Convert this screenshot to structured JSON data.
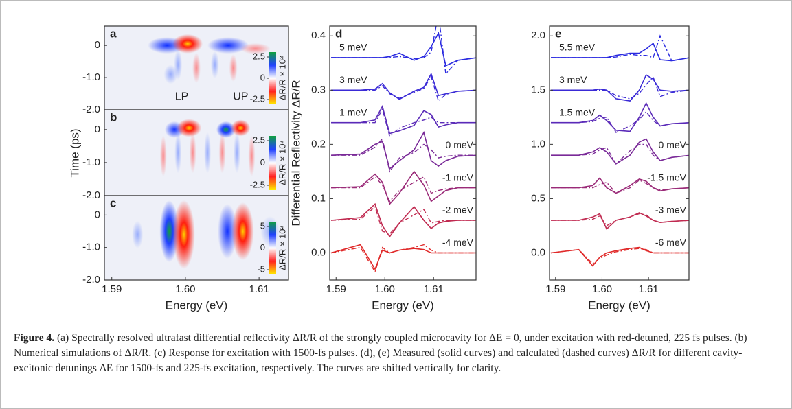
{
  "chart_data": [
    {
      "type": "heatmap",
      "letter": "a",
      "xlim": [
        1.589,
        1.614
      ],
      "ylim": [
        -2.0,
        0.6
      ],
      "yticks": [
        0,
        {
          "value": -1.0,
          "label": "-1.0"
        },
        {
          "value": -2.0,
          "label": "-2.0"
        }
      ],
      "colorbar": {
        "label": "ΔR/R × 10²",
        "ticks": [
          2.5,
          0,
          -2.5
        ]
      },
      "annotations": [
        "LP",
        "UP"
      ]
    },
    {
      "type": "heatmap",
      "letter": "b",
      "xlim": [
        1.589,
        1.614
      ],
      "ylim": [
        -2.0,
        0.6
      ],
      "ylabel": "Time (ps)",
      "yticks": [
        0,
        {
          "value": -1.0,
          "label": "-1.0"
        },
        {
          "value": -2.0,
          "label": "-2.0"
        }
      ],
      "colorbar": {
        "label": "ΔR/R × 10²",
        "ticks": [
          2.5,
          0,
          -2.5
        ]
      }
    },
    {
      "type": "heatmap",
      "letter": "c",
      "xlim": [
        1.589,
        1.614
      ],
      "ylim": [
        -2.0,
        0.6
      ],
      "xlabel": "Energy (eV)",
      "xticks": [
        1.59,
        {
          "value": 1.6,
          "label": "1.60"
        },
        1.61
      ],
      "yticks": [
        0,
        {
          "value": -1.0,
          "label": "-1.0"
        },
        {
          "value": -2.0,
          "label": "-2.0"
        }
      ],
      "colorbar": {
        "label": "ΔR/R × 10²",
        "ticks": [
          5,
          0,
          -5
        ]
      }
    },
    {
      "type": "line",
      "letter": "d",
      "xlabel": "Energy (eV)",
      "ylabel": "Differential Reflectivity ΔR/R",
      "xlim": [
        1.5887,
        1.6187
      ],
      "ylim": [
        -0.05,
        0.418
      ],
      "xticks": [
        1.59,
        {
          "value": 1.6,
          "label": "1.60"
        },
        1.61
      ],
      "yticks": [
        {
          "value": 0,
          "label": "0.0"
        },
        0.1,
        0.2,
        0.3,
        0.4
      ],
      "x": [
        1.589,
        1.595,
        1.598,
        1.5995,
        1.601,
        1.603,
        1.606,
        1.608,
        1.6095,
        1.611,
        1.6125,
        1.615,
        1.619
      ],
      "series": [
        {
          "name": "5 meV",
          "color": "#2a2ae0",
          "values": [
            0.36,
            0.36,
            0.36,
            0.36,
            0.362,
            0.368,
            0.355,
            0.362,
            0.38,
            0.405,
            0.345,
            0.355,
            0.36
          ],
          "model": [
            0.36,
            0.36,
            0.36,
            0.36,
            0.36,
            0.362,
            0.358,
            0.36,
            0.37,
            0.44,
            0.33,
            0.355,
            0.36
          ]
        },
        {
          "name": "3 meV",
          "color": "#3a2ad6",
          "values": [
            0.3,
            0.3,
            0.302,
            0.312,
            0.295,
            0.283,
            0.298,
            0.305,
            0.33,
            0.29,
            0.293,
            0.298,
            0.3
          ],
          "model": [
            0.3,
            0.3,
            0.3,
            0.308,
            0.293,
            0.285,
            0.296,
            0.303,
            0.325,
            0.28,
            0.292,
            0.298,
            0.3
          ]
        },
        {
          "name": "1 meV",
          "color": "#5a2ab8",
          "values": [
            0.24,
            0.24,
            0.245,
            0.27,
            0.22,
            0.225,
            0.235,
            0.262,
            0.255,
            0.232,
            0.236,
            0.24,
            0.24
          ],
          "model": [
            0.24,
            0.24,
            0.24,
            0.265,
            0.215,
            0.23,
            0.24,
            0.245,
            0.25,
            0.24,
            0.24,
            0.24,
            0.24
          ]
        },
        {
          "name": "0 meV",
          "color": "#7a2a98",
          "values": [
            0.18,
            0.182,
            0.2,
            0.205,
            0.155,
            0.17,
            0.19,
            0.222,
            0.17,
            0.16,
            0.17,
            0.178,
            0.18
          ],
          "model": [
            0.18,
            0.18,
            0.195,
            0.21,
            0.15,
            0.175,
            0.185,
            0.2,
            0.19,
            0.175,
            0.178,
            0.18,
            0.18
          ]
        },
        {
          "name": "-1 meV",
          "color": "#9a2a78",
          "values": [
            0.12,
            0.122,
            0.145,
            0.13,
            0.09,
            0.11,
            0.15,
            0.125,
            0.095,
            0.105,
            0.115,
            0.12,
            0.12
          ],
          "model": [
            0.12,
            0.12,
            0.14,
            0.125,
            0.095,
            0.115,
            0.13,
            0.14,
            0.11,
            0.115,
            0.118,
            0.12,
            0.12
          ]
        },
        {
          "name": "-2 meV",
          "color": "#c02a50",
          "values": [
            0.06,
            0.065,
            0.09,
            0.05,
            0.03,
            0.055,
            0.085,
            0.06,
            0.045,
            0.055,
            0.058,
            0.06,
            0.06
          ],
          "model": [
            0.06,
            0.062,
            0.085,
            0.04,
            0.035,
            0.055,
            0.07,
            0.08,
            0.055,
            0.058,
            0.06,
            0.06,
            0.06
          ]
        },
        {
          "name": "-4 meV",
          "color": "#e02a2a",
          "values": [
            0,
            0.015,
            -0.03,
            0.005,
            0,
            0.005,
            0.008,
            0.006,
            0,
            0,
            0,
            0,
            0
          ],
          "model": [
            0,
            0.01,
            -0.035,
            0.01,
            0,
            0.005,
            0.01,
            0.015,
            0.005,
            0,
            0,
            0,
            0
          ]
        }
      ]
    },
    {
      "type": "line",
      "letter": "e",
      "xlabel": "Energy (eV)",
      "xlim": [
        1.5887,
        1.6187
      ],
      "ylim": [
        -0.25,
        2.09
      ],
      "xticks": [
        1.59,
        {
          "value": 1.6,
          "label": "1.60"
        },
        1.61
      ],
      "yticks": [
        {
          "value": 0,
          "label": "0.0"
        },
        0.5,
        {
          "value": 1,
          "label": "1.0"
        },
        1.5,
        {
          "value": 2,
          "label": "2.0"
        }
      ],
      "x": [
        1.589,
        1.595,
        1.598,
        1.5995,
        1.601,
        1.603,
        1.606,
        1.608,
        1.6095,
        1.611,
        1.6125,
        1.615,
        1.619
      ],
      "series": [
        {
          "name": "5.5 meV",
          "color": "#2a2ae0",
          "values": [
            1.8,
            1.8,
            1.8,
            1.8,
            1.8,
            1.82,
            1.84,
            1.84,
            1.88,
            1.93,
            1.78,
            1.77,
            1.8
          ],
          "model": [
            1.8,
            1.8,
            1.8,
            1.8,
            1.8,
            1.805,
            1.83,
            1.82,
            1.82,
            1.8,
            2.0,
            1.77,
            1.8
          ]
        },
        {
          "name": "3 meV",
          "color": "#3a2ad6",
          "values": [
            1.5,
            1.5,
            1.5,
            1.51,
            1.5,
            1.42,
            1.4,
            1.5,
            1.64,
            1.6,
            1.5,
            1.49,
            1.5
          ],
          "model": [
            1.5,
            1.5,
            1.5,
            1.5,
            1.5,
            1.45,
            1.42,
            1.47,
            1.55,
            1.62,
            1.44,
            1.48,
            1.5
          ]
        },
        {
          "name": "1.5 meV",
          "color": "#5a2ab8",
          "values": [
            1.2,
            1.2,
            1.22,
            1.27,
            1.22,
            1.13,
            1.12,
            1.25,
            1.38,
            1.25,
            1.17,
            1.19,
            1.2
          ],
          "model": [
            1.2,
            1.2,
            1.21,
            1.24,
            1.25,
            1.11,
            1.17,
            1.23,
            1.3,
            1.22,
            1.17,
            1.19,
            1.2
          ]
        },
        {
          "name": "0 meV",
          "color": "#7a2a98",
          "values": [
            0.9,
            0.9,
            0.93,
            0.97,
            0.93,
            0.82,
            0.9,
            1.02,
            1.05,
            0.93,
            0.85,
            0.88,
            0.9
          ],
          "model": [
            0.9,
            0.9,
            0.91,
            0.95,
            0.97,
            0.82,
            0.94,
            1.0,
            1.0,
            0.9,
            0.85,
            0.88,
            0.9
          ]
        },
        {
          "name": "-1.5 meV",
          "color": "#9a2a78",
          "values": [
            0.6,
            0.6,
            0.62,
            0.69,
            0.6,
            0.55,
            0.62,
            0.68,
            0.66,
            0.6,
            0.57,
            0.59,
            0.6
          ],
          "model": [
            0.6,
            0.6,
            0.6,
            0.63,
            0.65,
            0.55,
            0.6,
            0.67,
            0.64,
            0.6,
            0.58,
            0.59,
            0.6
          ]
        },
        {
          "name": "-3 meV",
          "color": "#c02a50",
          "values": [
            0.3,
            0.3,
            0.33,
            0.36,
            0.22,
            0.3,
            0.33,
            0.37,
            0.34,
            0.3,
            0.28,
            0.29,
            0.3
          ],
          "model": [
            0.3,
            0.3,
            0.31,
            0.34,
            0.25,
            0.3,
            0.33,
            0.36,
            0.35,
            0.3,
            0.28,
            0.29,
            0.3
          ]
        },
        {
          "name": "-6 meV",
          "color": "#e02a2a",
          "values": [
            0,
            0.03,
            -0.12,
            -0.04,
            0,
            0.02,
            0.04,
            0.05,
            0.02,
            0,
            0,
            0,
            0
          ],
          "model": [
            0,
            0.03,
            -0.1,
            -0.05,
            -0.02,
            0.01,
            0.03,
            0.04,
            0.03,
            0,
            0,
            0,
            0
          ]
        }
      ]
    }
  ],
  "caption": {
    "label": "Figure 4.",
    "text": "(a) Spectrally resolved ultrafast differential reflectivity ΔR/R of the strongly coupled microcavity for ΔE = 0, under excitation with red-detuned, 225 fs pulses. (b) Numerical simulations of ΔR/R. (c) Response for excitation with 1500-fs pulses. (d), (e) Measured (solid curves) and calculated (dashed curves) ΔR/R for different cavity-excitonic detunings ΔE for 1500-fs and 225-fs excitation, respectively. The curves are shifted vertically for clarity."
  }
}
